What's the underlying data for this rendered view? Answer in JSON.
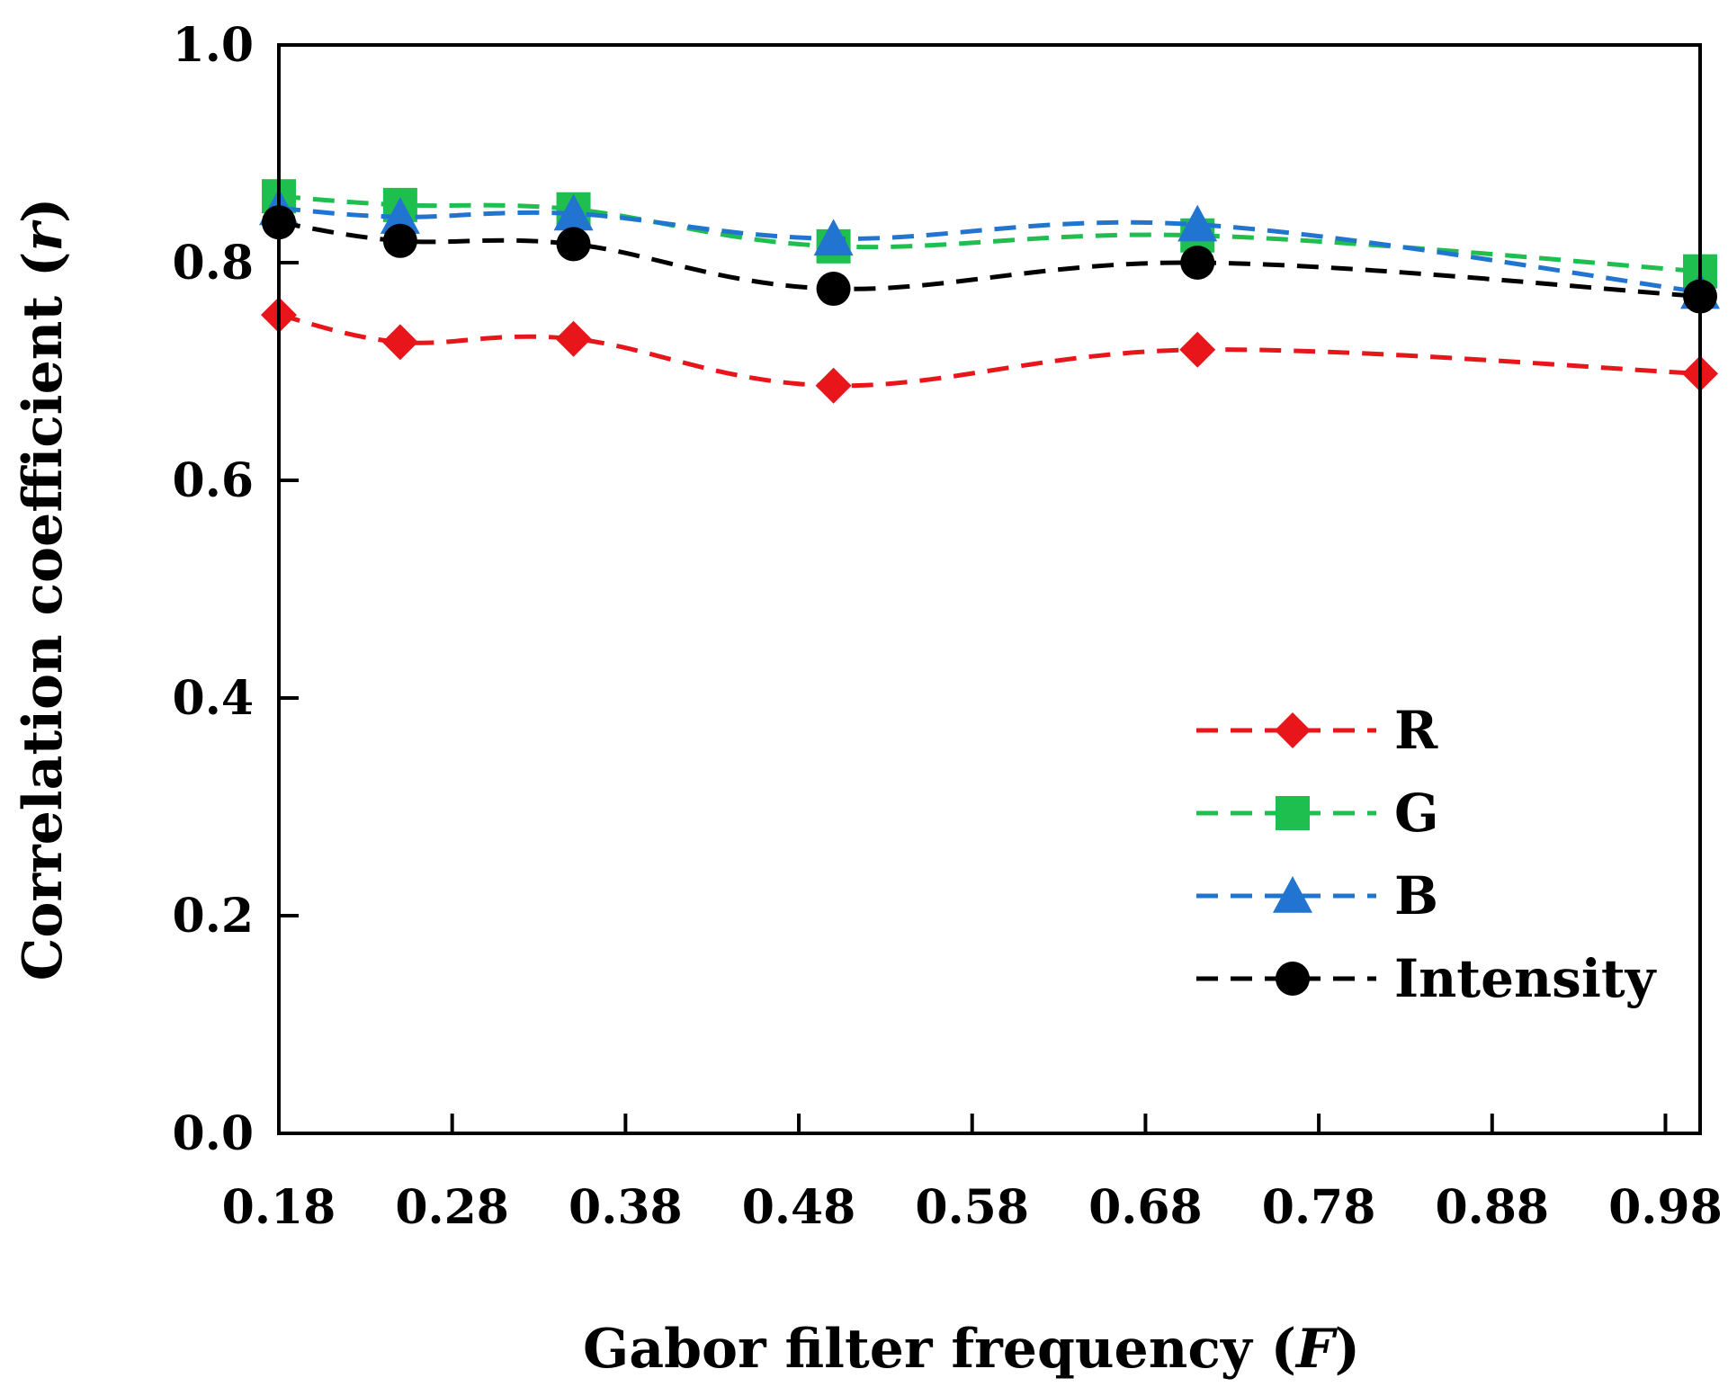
{
  "chart_data": {
    "type": "line",
    "title": "",
    "xlabel": "Gabor filter frequency (F)",
    "xlabel_parts": {
      "prefix": "Gabor filter frequency (",
      "var": "F",
      "suffix": ")"
    },
    "ylabel": "Correlation coefficient (r)",
    "ylabel_parts": {
      "prefix": "Correlation coefficient (",
      "var": "r",
      "suffix": ")"
    },
    "xlim": [
      0.18,
      1.0
    ],
    "ylim": [
      0.0,
      1.0
    ],
    "x_ticks": [
      0.18,
      0.28,
      0.38,
      0.48,
      0.58,
      0.68,
      0.78,
      0.88,
      0.98
    ],
    "x_tick_labels": [
      "0.18",
      "0.28",
      "0.38",
      "0.48",
      "0.58",
      "0.68",
      "0.78",
      "0.88",
      "0.98"
    ],
    "y_ticks": [
      0.0,
      0.2,
      0.4,
      0.6,
      0.8,
      1.0
    ],
    "y_tick_labels": [
      "0.0",
      "0.2",
      "0.4",
      "0.6",
      "0.8",
      "1.0"
    ],
    "grid": false,
    "legend_position": "bottom-right",
    "x": [
      0.18,
      0.25,
      0.35,
      0.5,
      0.71,
      1.0
    ],
    "series": [
      {
        "name": "R",
        "color": "#e8161b",
        "marker": "diamond",
        "values": [
          0.752,
          0.727,
          0.73,
          0.687,
          0.72,
          0.698
        ]
      },
      {
        "name": "G",
        "color": "#1fbf4f",
        "marker": "square",
        "values": [
          0.861,
          0.853,
          0.849,
          0.815,
          0.825,
          0.792
        ]
      },
      {
        "name": "B",
        "color": "#2175d0",
        "marker": "triangle",
        "values": [
          0.85,
          0.842,
          0.845,
          0.822,
          0.835,
          0.773
        ]
      },
      {
        "name": "Intensity",
        "color": "#000000",
        "marker": "circle",
        "values": [
          0.837,
          0.82,
          0.817,
          0.776,
          0.8,
          0.769
        ]
      }
    ]
  }
}
